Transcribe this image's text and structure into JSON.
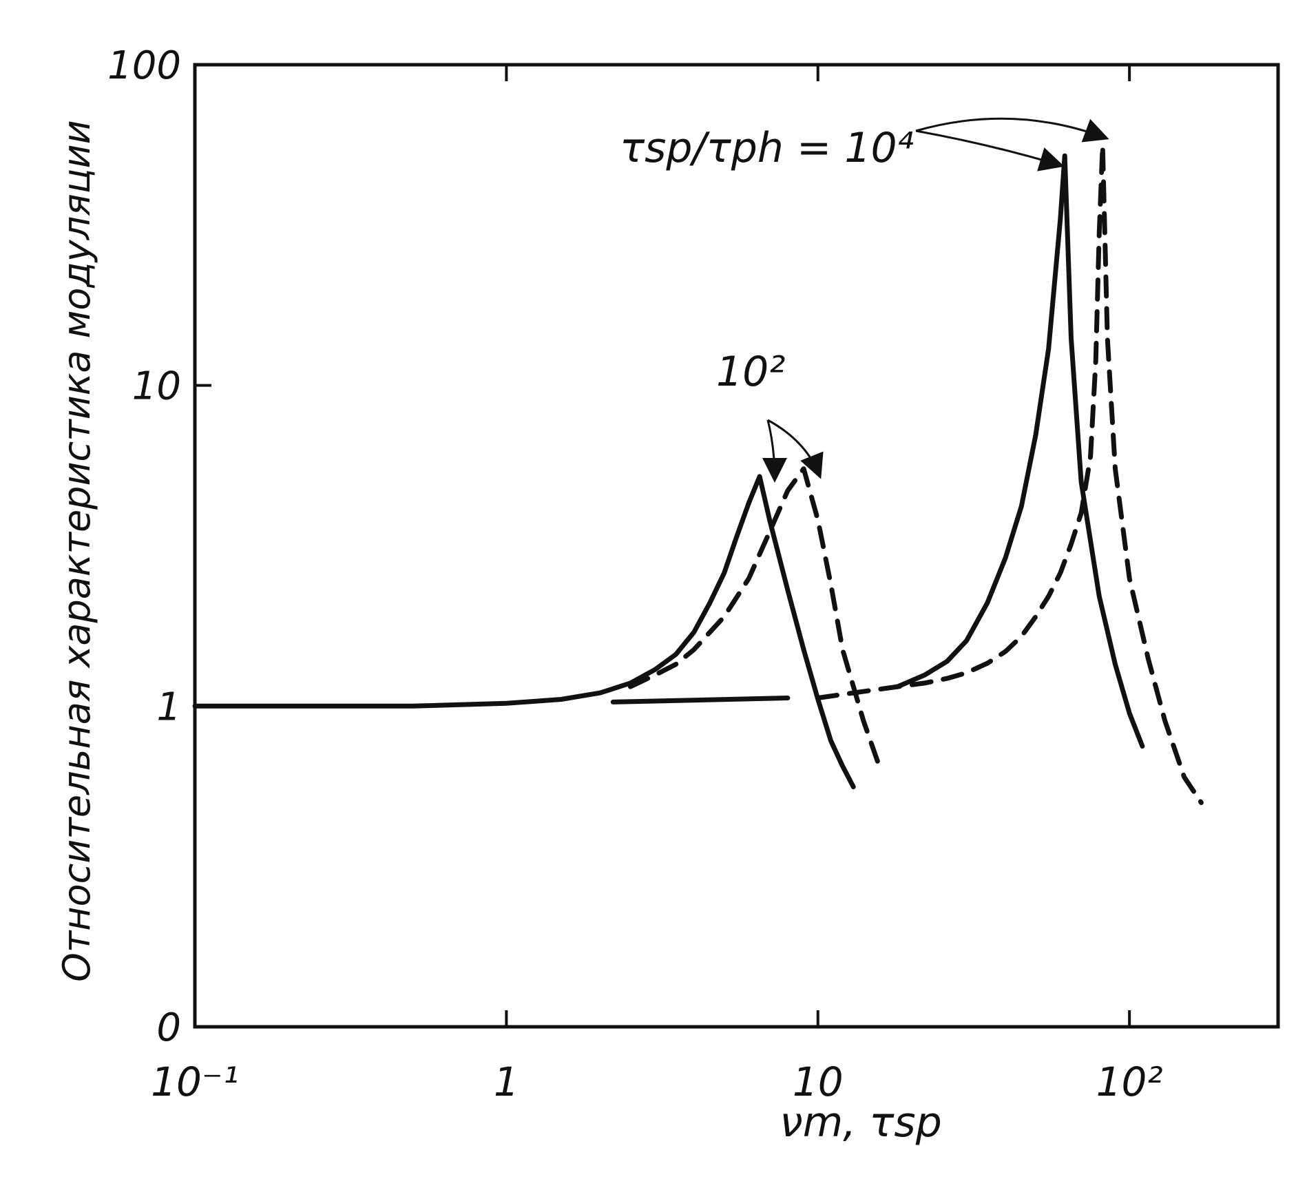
{
  "chart_data": {
    "type": "line",
    "title": "",
    "xlabel": "νm, τsp",
    "ylabel": "Относительная характеристика модуляции",
    "xscale": "log",
    "yscale": "log",
    "xlim": [
      0.1,
      300
    ],
    "ylim": [
      0.1,
      100
    ],
    "x_ticks": [
      {
        "value": 0.1,
        "label": "10⁻¹"
      },
      {
        "value": 1,
        "label": "1"
      },
      {
        "value": 10,
        "label": "10"
      },
      {
        "value": 100,
        "label": "10²"
      }
    ],
    "y_ticks": [
      {
        "value": 100,
        "label": "100"
      },
      {
        "value": 10,
        "label": "10"
      },
      {
        "value": 1,
        "label": "1"
      },
      {
        "value": 0.1,
        "label": "0"
      }
    ],
    "grid": false,
    "annotations": [
      {
        "text": "τsp/τph = 10⁴",
        "x": 25,
        "y": 60
      },
      {
        "text": "10²",
        "x": 6.5,
        "y": 10
      }
    ],
    "series": [
      {
        "style": "solid",
        "x": [
          0.1,
          0.5,
          1,
          1.5,
          2,
          2.5,
          3,
          3.5,
          4,
          4.5,
          5,
          5.5,
          6,
          6.5,
          7,
          8,
          9,
          10,
          11,
          12,
          13
        ],
        "y": [
          1.0,
          1.0,
          1.02,
          1.05,
          1.1,
          1.18,
          1.3,
          1.45,
          1.7,
          2.1,
          2.6,
          3.4,
          4.3,
          5.2,
          3.8,
          2.3,
          1.5,
          1.05,
          0.78,
          0.65,
          0.56
        ]
      },
      {
        "style": "dashed",
        "x": [
          2.5,
          3,
          3.5,
          4,
          5,
          6,
          7,
          8,
          9,
          10,
          11,
          12,
          14,
          16
        ],
        "y": [
          1.15,
          1.25,
          1.35,
          1.5,
          1.9,
          2.5,
          3.5,
          4.7,
          5.5,
          3.8,
          2.4,
          1.5,
          0.9,
          0.62
        ]
      },
      {
        "style": "solid",
        "x": [
          2.2,
          8
        ],
        "y": [
          1.03,
          1.06
        ]
      },
      {
        "style": "solid",
        "x": [
          18,
          22,
          26,
          30,
          35,
          40,
          45,
          50,
          55,
          60,
          62,
          65,
          70,
          80,
          90,
          100,
          110
        ],
        "y": [
          1.15,
          1.25,
          1.38,
          1.6,
          2.1,
          2.9,
          4.2,
          7.0,
          13.0,
          33.0,
          52.0,
          14.0,
          5.0,
          2.2,
          1.35,
          0.95,
          0.75
        ]
      },
      {
        "style": "dashed",
        "x": [
          10,
          13,
          18,
          22,
          26,
          30,
          35,
          40,
          45,
          50,
          55,
          60,
          65,
          70,
          75,
          78,
          80,
          82,
          85,
          90,
          100,
          115,
          130,
          150,
          170
        ],
        "y": [
          1.06,
          1.1,
          1.15,
          1.18,
          1.22,
          1.27,
          1.36,
          1.48,
          1.65,
          1.9,
          2.2,
          2.6,
          3.2,
          4.0,
          6.0,
          12.0,
          30.0,
          56.0,
          14.0,
          5.5,
          2.5,
          1.4,
          0.9,
          0.6,
          0.5
        ]
      }
    ]
  }
}
